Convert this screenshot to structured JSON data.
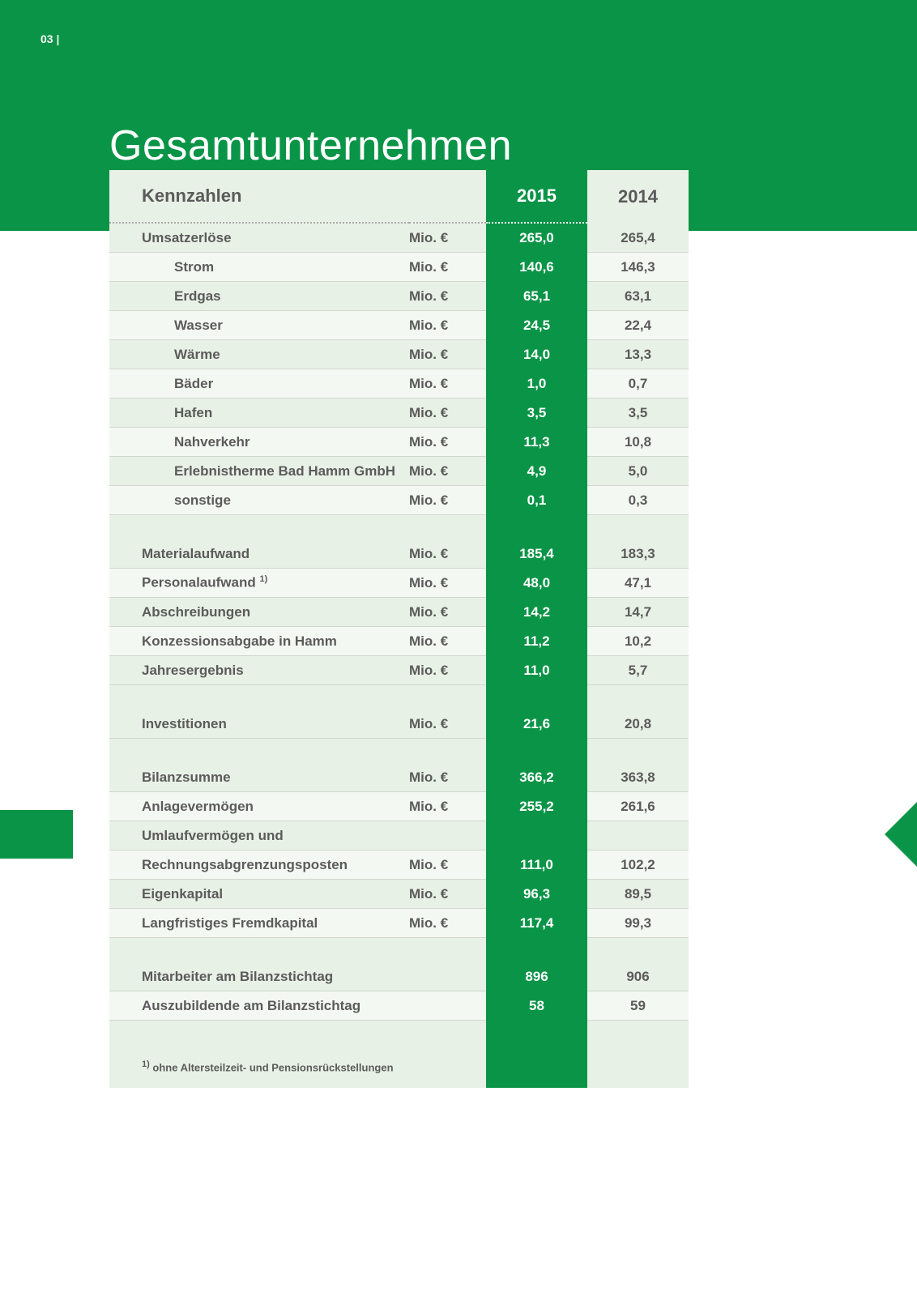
{
  "page_number": "03",
  "title": "Gesamtunternehmen",
  "header": {
    "label": "Kennzahlen",
    "year1": "2015",
    "year2": "2014"
  },
  "unit_currency": "Mio. €",
  "colors": {
    "brand_green": "#0a9447",
    "row_alt": "#e8f1e5",
    "row_plain": "#f4f8f2",
    "text": "#5b5b5b"
  },
  "rows": [
    {
      "label": "Umsatzerlöse",
      "unit": "Mio. €",
      "y1": "265,0",
      "y2": "265,4",
      "sub": false
    },
    {
      "label": "Strom",
      "unit": "Mio. €",
      "y1": "140,6",
      "y2": "146,3",
      "sub": true
    },
    {
      "label": "Erdgas",
      "unit": "Mio. €",
      "y1": "65,1",
      "y2": "63,1",
      "sub": true
    },
    {
      "label": "Wasser",
      "unit": "Mio. €",
      "y1": "24,5",
      "y2": "22,4",
      "sub": true
    },
    {
      "label": "Wärme",
      "unit": "Mio. €",
      "y1": "14,0",
      "y2": "13,3",
      "sub": true
    },
    {
      "label": "Bäder",
      "unit": "Mio. €",
      "y1": "1,0",
      "y2": "0,7",
      "sub": true
    },
    {
      "label": "Hafen",
      "unit": "Mio. €",
      "y1": "3,5",
      "y2": "3,5",
      "sub": true
    },
    {
      "label": "Nahverkehr",
      "unit": "Mio. €",
      "y1": "11,3",
      "y2": "10,8",
      "sub": true
    },
    {
      "label": "Erlebnistherme Bad Hamm GmbH",
      "unit": "Mio. €",
      "y1": "4,9",
      "y2": "5,0",
      "sub": true
    },
    {
      "label": "sonstige",
      "unit": "Mio. €",
      "y1": "0,1",
      "y2": "0,3",
      "sub": true
    },
    {
      "spacer": true
    },
    {
      "label": "Materialaufwand",
      "unit": "Mio. €",
      "y1": "185,4",
      "y2": "183,3"
    },
    {
      "label_html": "Personalaufwand <sup class=\"sup\">1)</sup>",
      "unit": "Mio. €",
      "y1": "48,0",
      "y2": "47,1"
    },
    {
      "label": "Abschreibungen",
      "unit": "Mio. €",
      "y1": "14,2",
      "y2": "14,7"
    },
    {
      "label": "Konzessionsabgabe in Hamm",
      "unit": "Mio. €",
      "y1": "11,2",
      "y2": "10,2"
    },
    {
      "label": "Jahresergebnis",
      "unit": "Mio. €",
      "y1": "11,0",
      "y2": "5,7"
    },
    {
      "spacer": true
    },
    {
      "label": "Investitionen",
      "unit": "Mio. €",
      "y1": "21,6",
      "y2": "20,8"
    },
    {
      "spacer": true
    },
    {
      "label": "Bilanzsumme",
      "unit": "Mio. €",
      "y1": "366,2",
      "y2": "363,8"
    },
    {
      "label": "Anlagevermögen",
      "unit": "Mio. €",
      "y1": "255,2",
      "y2": "261,6"
    },
    {
      "label": "Umlaufvermögen und",
      "unit": "",
      "y1": "",
      "y2": ""
    },
    {
      "label": "Rechnungsabgrenzungsposten",
      "unit": "Mio. €",
      "y1": "111,0",
      "y2": "102,2"
    },
    {
      "label": "Eigenkapital",
      "unit": "Mio. €",
      "y1": "96,3",
      "y2": "89,5"
    },
    {
      "label": "Langfristiges Fremdkapital",
      "unit": "Mio. €",
      "y1": "117,4",
      "y2": "99,3"
    },
    {
      "spacer": true
    },
    {
      "label": "Mitarbeiter am Bilanzstichtag",
      "unit": "",
      "y1": "896",
      "y2": "906"
    },
    {
      "label": "Auszubildende am Bilanzstichtag",
      "unit": "",
      "y1": "58",
      "y2": "59"
    },
    {
      "spacer": true
    }
  ],
  "footnote": "1) ohne Altersteilzeit- und Pensionsrückstellungen"
}
